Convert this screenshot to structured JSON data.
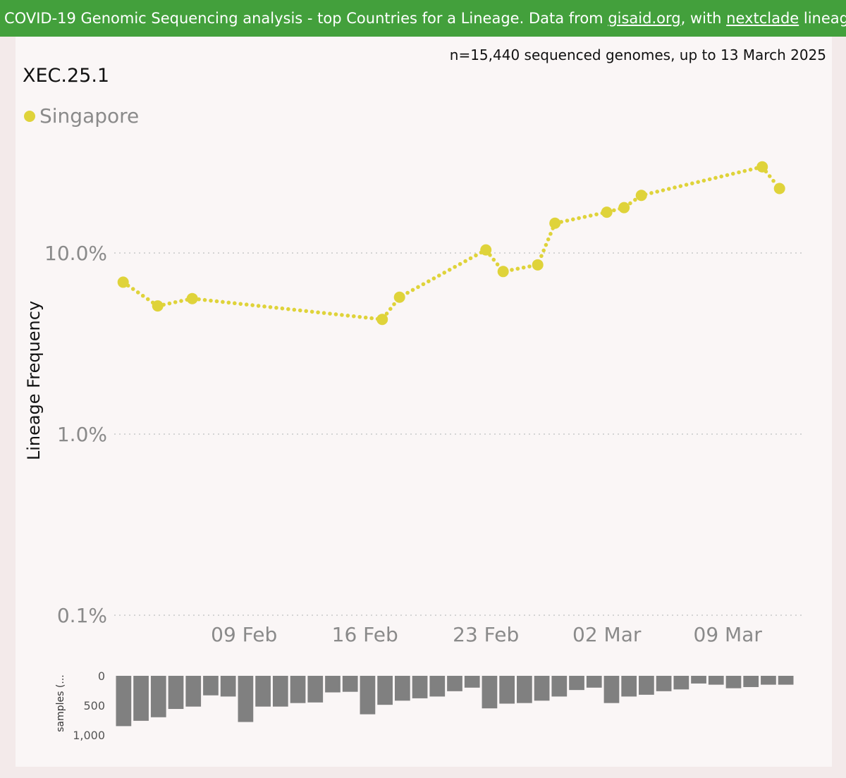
{
  "banner": {
    "prefix": "COVID-19 Genomic Sequencing analysis - top Countries for a Lineage. Data from ",
    "link1": "gisaid.org",
    "middle": ", with ",
    "link2": "nextclade",
    "suffix": " lineages Sc"
  },
  "meta": {
    "summary": "n=15,440 sequenced genomes, up to 13 March 2025"
  },
  "chart_data": {
    "type": "line",
    "lineage": "XEC.25.1",
    "ylabel": "Lineage Frequency",
    "yscale": "log",
    "ylim": [
      0.1,
      30
    ],
    "yticks": [
      0.1,
      1.0,
      10.0
    ],
    "ytick_labels": [
      "0.1%",
      "1.0%",
      "10.0%"
    ],
    "xtick_labels": [
      "09 Feb",
      "16 Feb",
      "23 Feb",
      "02 Mar",
      "09 Mar"
    ],
    "xtick_days": [
      7,
      14,
      21,
      28,
      35
    ],
    "xlim_days": [
      -0.6,
      39.4
    ],
    "grid": "horizontal-dotted",
    "legend_position": "top-left",
    "colors": {
      "line": "#dfd33a",
      "bars": "#808080"
    },
    "series": [
      {
        "name": "Singapore",
        "points": [
          {
            "day": 0,
            "value": 6.9
          },
          {
            "day": 2,
            "value": 5.1
          },
          {
            "day": 4,
            "value": 5.6
          },
          {
            "day": 15,
            "value": 4.3
          },
          {
            "day": 16,
            "value": 5.7
          },
          {
            "day": 21,
            "value": 10.4
          },
          {
            "day": 22,
            "value": 7.9
          },
          {
            "day": 24,
            "value": 8.6
          },
          {
            "day": 25,
            "value": 14.6
          },
          {
            "day": 28,
            "value": 16.8
          },
          {
            "day": 29,
            "value": 17.8
          },
          {
            "day": 30,
            "value": 20.8
          },
          {
            "day": 37,
            "value": 29.9
          },
          {
            "day": 38,
            "value": 22.7
          }
        ]
      }
    ],
    "samples": {
      "label": "samples (...",
      "yticks": [
        0,
        500,
        1000
      ],
      "ytick_labels": [
        "0",
        "500",
        "1,000"
      ],
      "ymax": 1000,
      "values": [
        850,
        760,
        700,
        560,
        520,
        330,
        350,
        780,
        520,
        520,
        460,
        450,
        280,
        270,
        650,
        490,
        420,
        380,
        350,
        260,
        200,
        550,
        470,
        460,
        420,
        350,
        240,
        200,
        460,
        350,
        320,
        260,
        230,
        130,
        150,
        210,
        190,
        150,
        150
      ]
    }
  }
}
